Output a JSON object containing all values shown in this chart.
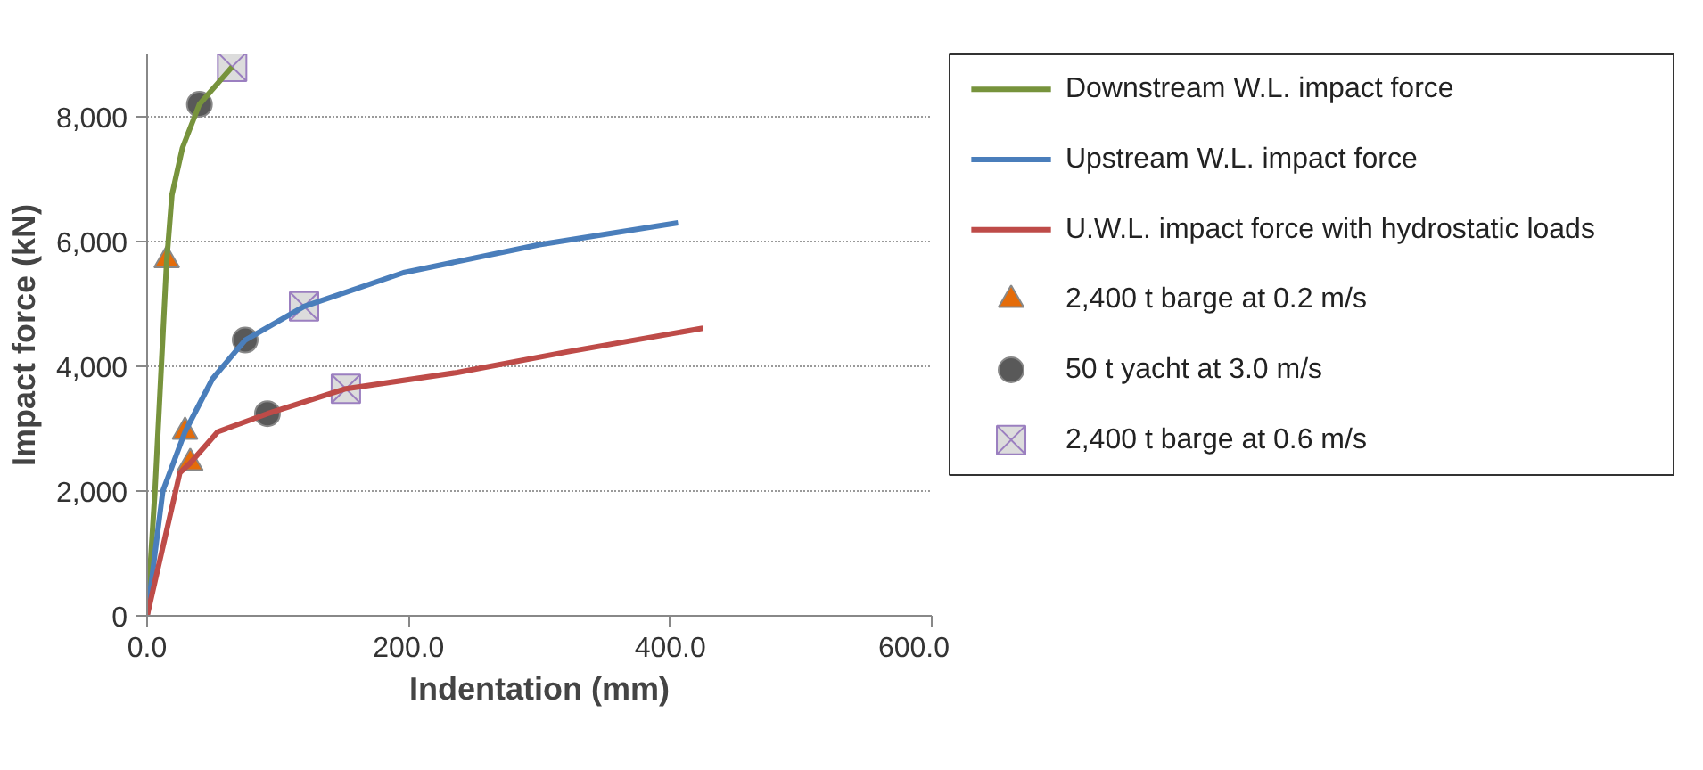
{
  "chart_data": {
    "type": "line",
    "xlabel": "Indentation (mm)",
    "ylabel": "Impact force (kN)",
    "xlim": [
      0,
      600
    ],
    "xticks": [
      {
        "value": 0,
        "label": "0.0"
      },
      {
        "value": 200,
        "label": "200.0"
      },
      {
        "value": 400,
        "label": "400.0"
      },
      {
        "value": 600,
        "label": "600.0"
      }
    ],
    "ylim": [
      0,
      9000
    ],
    "yticks": [
      {
        "value": 0,
        "label": "0"
      },
      {
        "value": 2000,
        "label": "2,000"
      },
      {
        "value": 4000,
        "label": "4,000"
      },
      {
        "value": 6000,
        "label": "6,000"
      },
      {
        "value": 8000,
        "label": "8,000"
      }
    ],
    "grid": "y",
    "legend": "right",
    "line_style": "solid",
    "series": [
      {
        "name": "Downstream W.L. impact force",
        "color": "#77933c",
        "marker": "none",
        "x": [
          0,
          6,
          15,
          19,
          27,
          40,
          65
        ],
        "values": [
          0,
          2000,
          5700,
          6750,
          7500,
          8200,
          8800
        ]
      },
      {
        "name": "Upstream W.L. impact force",
        "color": "#4a7ebb",
        "marker": "none",
        "x": [
          0,
          12,
          29,
          50,
          75,
          120,
          196,
          300,
          406
        ],
        "values": [
          0,
          2000,
          2950,
          3800,
          4420,
          4960,
          5500,
          5950,
          6300
        ]
      },
      {
        "name": "U.W.L. impact force with hydrostatic loads",
        "color": "#be4b48",
        "marker": "none",
        "x": [
          0,
          25,
          33,
          54,
          92,
          152,
          237,
          321,
          425
        ],
        "values": [
          0,
          2290,
          2450,
          2950,
          3240,
          3640,
          3900,
          4230,
          4610
        ]
      },
      {
        "name": "2,400 t barge at 0.2 m/s",
        "type": "scatter",
        "color": "#e46c0a",
        "marker": "triangle",
        "x": [
          15,
          29,
          33
        ],
        "values": [
          5700,
          2950,
          2450
        ]
      },
      {
        "name": "50 t yacht at 3.0 m/s",
        "type": "scatter",
        "color": "#595959",
        "marker": "circle",
        "x": [
          40,
          75,
          92
        ],
        "values": [
          8200,
          4420,
          3240
        ]
      },
      {
        "name": "2,400 t barge at 0.6 m/s",
        "type": "scatter",
        "color": "#9b7fc0",
        "marker": "cross",
        "x": [
          65,
          120,
          152
        ],
        "values": [
          8800,
          4960,
          3640
        ]
      }
    ]
  }
}
